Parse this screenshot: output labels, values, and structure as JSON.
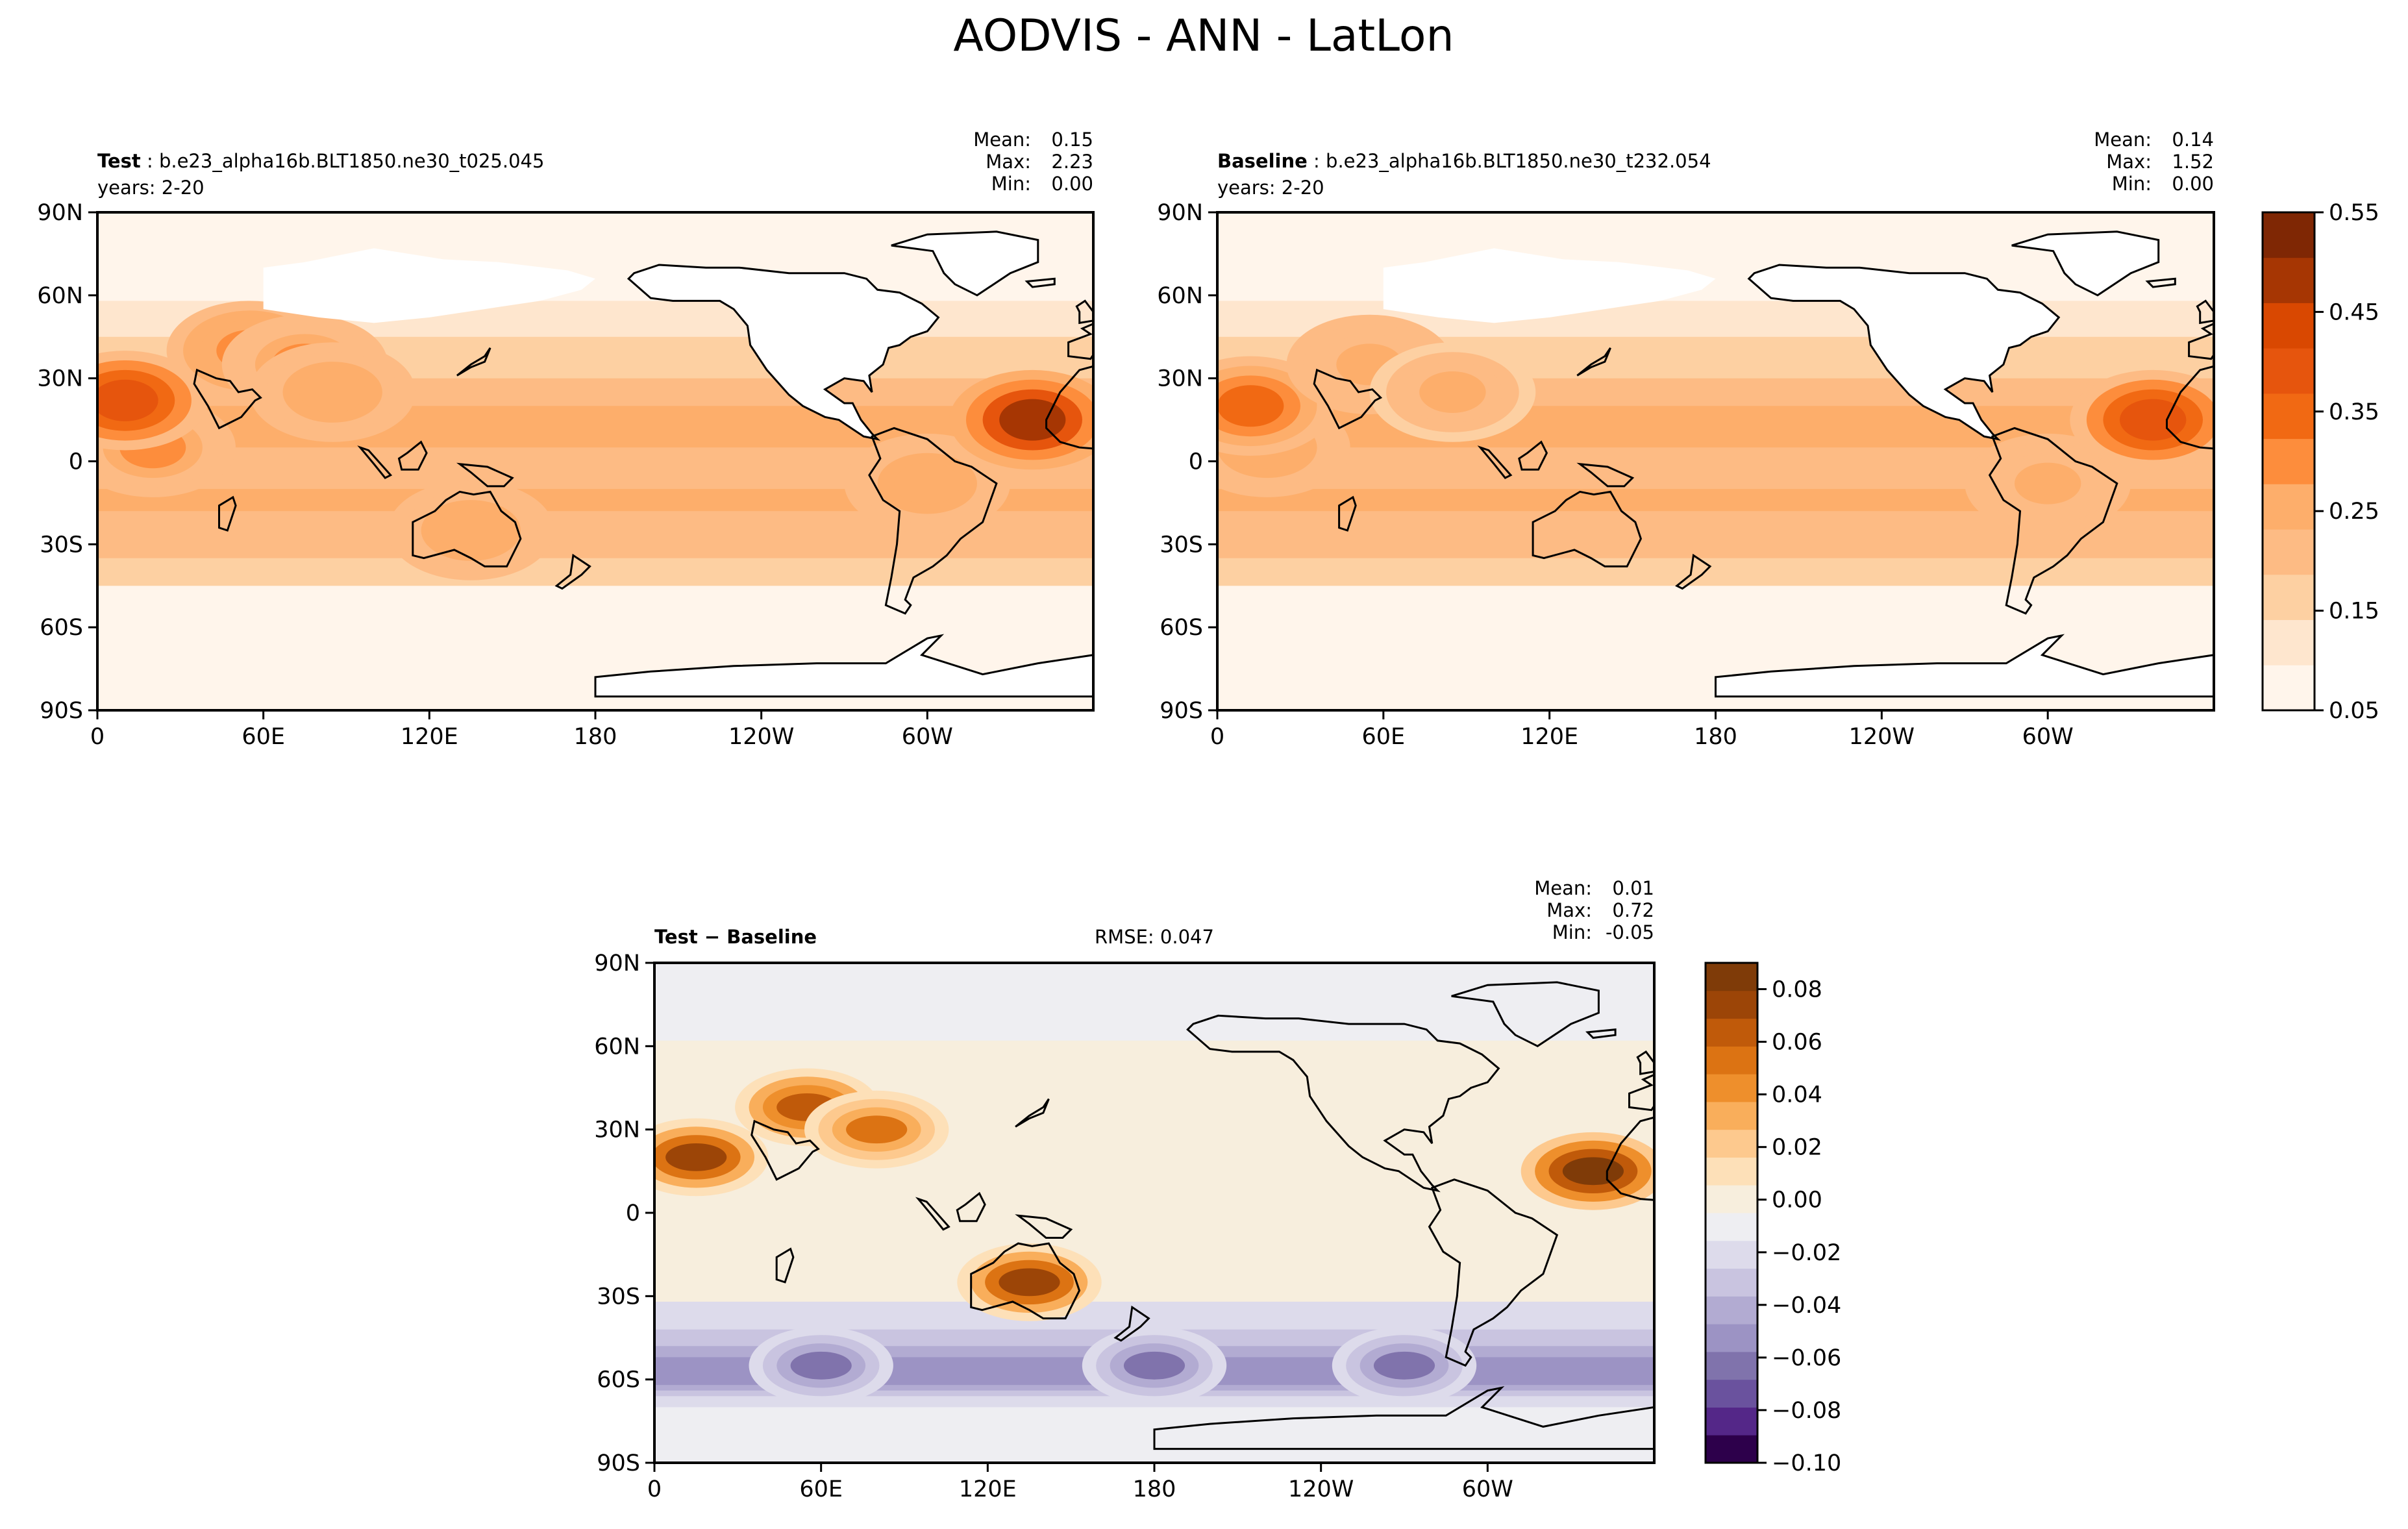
{
  "figure_title": "AODVIS - ANN - LatLon",
  "colors": {
    "seq": [
      "#fff5eb",
      "#fee6ce",
      "#fdd0a2",
      "#fdbb84",
      "#fdae6b",
      "#fd8d3c",
      "#f16913",
      "#e6550d",
      "#d94801",
      "#a63603",
      "#7f2704"
    ],
    "land": "#ffffff",
    "diff_pos": [
      "#f7eedd",
      "#fde0b8",
      "#fdc98e",
      "#f9ae5b",
      "#ee8f2c",
      "#dc7313",
      "#c05a0a",
      "#9c4507",
      "#7f3b08"
    ],
    "diff_neg": [
      "#eeeef2",
      "#dddbeb",
      "#c9c4e0",
      "#b2abd2",
      "#9c93c4",
      "#8073ac",
      "#6a529e",
      "#542788",
      "#2d004b"
    ]
  },
  "chart_data": [
    {
      "type": "heatmap",
      "panel": "test",
      "label_bold": "Test",
      "case_name": "b.e23_alpha16b.BLT1850.ne30_t025.045",
      "years": "years: 2-20",
      "stats": {
        "mean": "0.15",
        "max": "2.23",
        "min": "0.00"
      },
      "xlabels": [
        "0",
        "60E",
        "120E",
        "180",
        "120W",
        "60W"
      ],
      "ylabels": [
        "90N",
        "60N",
        "30N",
        "0",
        "30S",
        "60S",
        "90S"
      ],
      "hotspots": [
        {
          "lon": 20,
          "lat": 5,
          "v": 0.3
        },
        {
          "lon": 10,
          "lat": 22,
          "v": 0.42
        },
        {
          "lon": 55,
          "lat": 40,
          "v": 0.32
        },
        {
          "lon": 75,
          "lat": 35,
          "v": 0.3
        },
        {
          "lon": 85,
          "lat": 25,
          "v": 0.28
        },
        {
          "lon": 135,
          "lat": -25,
          "v": 0.28
        },
        {
          "lon": 300,
          "lat": -8,
          "v": 0.28
        },
        {
          "lon": 338,
          "lat": 15,
          "v": 0.5
        }
      ],
      "value_range": [
        0.05,
        0.55
      ]
    },
    {
      "type": "heatmap",
      "panel": "baseline",
      "label_bold": "Baseline",
      "case_name": "b.e23_alpha16b.BLT1850.ne30_t232.054",
      "years": "years: 2-20",
      "stats": {
        "mean": "0.14",
        "max": "1.52",
        "min": "0.00"
      },
      "xlabels": [
        "0",
        "60E",
        "120E",
        "180",
        "120W",
        "60W"
      ],
      "ylabels": [
        "90N",
        "60N",
        "30N",
        "0",
        "30S",
        "60S",
        "90S"
      ],
      "hotspots": [
        {
          "lon": 18,
          "lat": 5,
          "v": 0.28
        },
        {
          "lon": 12,
          "lat": 20,
          "v": 0.36
        },
        {
          "lon": 55,
          "lat": 35,
          "v": 0.26
        },
        {
          "lon": 85,
          "lat": 25,
          "v": 0.25
        },
        {
          "lon": 300,
          "lat": -8,
          "v": 0.26
        },
        {
          "lon": 338,
          "lat": 15,
          "v": 0.42
        }
      ],
      "value_range": [
        0.05,
        0.55
      ]
    },
    {
      "type": "heatmap",
      "panel": "diff",
      "label": "Test − Baseline",
      "rmse": "RMSE: 0.047",
      "stats": {
        "mean": "0.01",
        "max": "0.72",
        "min": "-0.05"
      },
      "xlabels": [
        "0",
        "60E",
        "120E",
        "180",
        "120W",
        "60W"
      ],
      "ylabels": [
        "90N",
        "60N",
        "30N",
        "0",
        "30S",
        "60S",
        "90S"
      ],
      "hotspots": [
        {
          "lon": 15,
          "lat": 20,
          "v": 0.07
        },
        {
          "lon": 55,
          "lat": 38,
          "v": 0.06
        },
        {
          "lon": 80,
          "lat": 30,
          "v": 0.05
        },
        {
          "lon": 135,
          "lat": -25,
          "v": 0.07
        },
        {
          "lon": 338,
          "lat": 15,
          "v": 0.08
        },
        {
          "lon": 180,
          "lat": -55,
          "v": -0.05
        },
        {
          "lon": 270,
          "lat": -55,
          "v": -0.05
        },
        {
          "lon": 60,
          "lat": -55,
          "v": -0.05
        }
      ],
      "value_range": [
        -0.1,
        0.09
      ]
    }
  ],
  "colorbars": {
    "seq": {
      "ticks": [
        "0.55",
        "0.45",
        "0.35",
        "0.25",
        "0.15",
        "0.05"
      ]
    },
    "diff": {
      "ticks": [
        "0.08",
        "0.06",
        "0.04",
        "0.02",
        "0.00",
        "−0.02",
        "−0.04",
        "−0.06",
        "−0.08",
        "−0.10"
      ]
    }
  },
  "labels": {
    "mean": "Mean:",
    "max": "Max:",
    "min": "Min:"
  }
}
